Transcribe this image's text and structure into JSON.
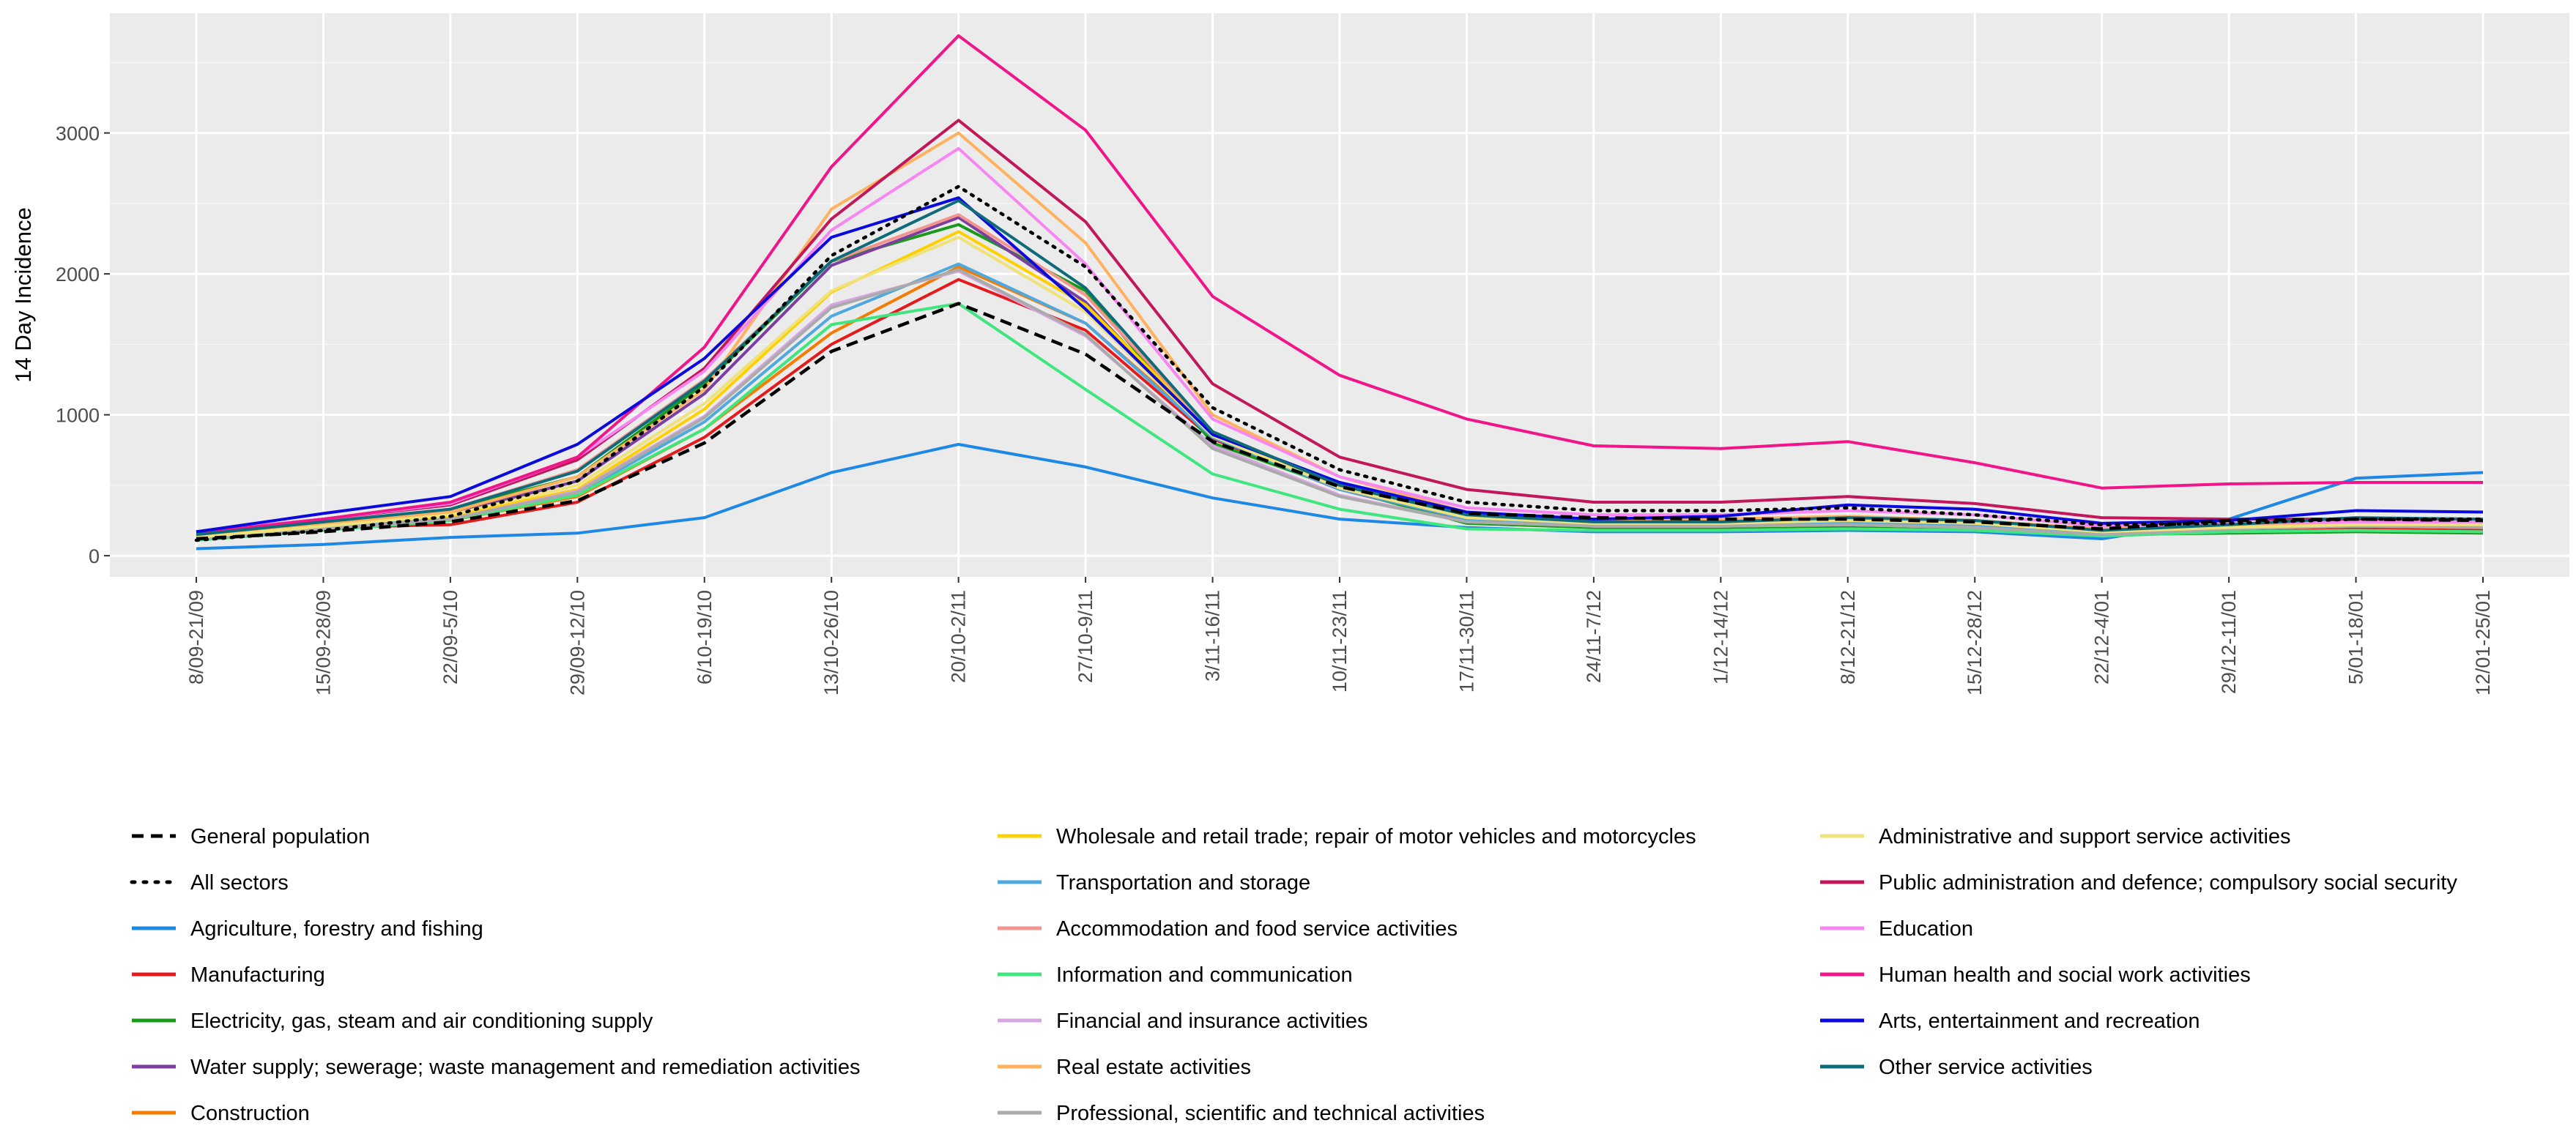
{
  "chart_data": {
    "type": "line",
    "title": "",
    "xlabel": "",
    "ylabel": "14 Day Incidence",
    "ylim": [
      -150,
      3850
    ],
    "yticks": [
      0,
      1000,
      2000,
      3000
    ],
    "ytick_labels": [
      "0",
      "1000",
      "2000",
      "3000"
    ],
    "grid": true,
    "legend_position": "bottom",
    "categories": [
      "8/09-21/09",
      "15/09-28/09",
      "22/09-5/10",
      "29/09-12/10",
      "6/10-19/10",
      "13/10-26/10",
      "20/10-2/11",
      "27/10-9/11",
      "3/11-16/11",
      "10/11-23/11",
      "17/11-30/11",
      "24/11-7/12",
      "1/12-14/12",
      "8/12-21/12",
      "15/12-28/12",
      "22/12-4/01",
      "29/12-11/01",
      "5/01-18/01",
      "12/01-25/01"
    ],
    "series": [
      {
        "name": "General population",
        "color": "#000000",
        "dash": "dashed",
        "values": [
          120,
          170,
          240,
          390,
          800,
          1450,
          1790,
          1430,
          810,
          490,
          300,
          270,
          260,
          260,
          240,
          190,
          250,
          260,
          250
        ]
      },
      {
        "name": "All sectors",
        "color": "#000000",
        "dash": "dotted",
        "values": [
          110,
          180,
          280,
          530,
          1200,
          2130,
          2620,
          2050,
          1050,
          610,
          380,
          320,
          320,
          340,
          290,
          220,
          230,
          260,
          260
        ]
      },
      {
        "name": "Agriculture, forestry and fishing",
        "color": "#1E88E5",
        "dash": "solid",
        "values": [
          50,
          80,
          130,
          160,
          270,
          590,
          790,
          630,
          410,
          260,
          200,
          170,
          170,
          180,
          170,
          120,
          260,
          550,
          590
        ]
      },
      {
        "name": "Manufacturing",
        "color": "#E41A1C",
        "dash": "solid",
        "values": [
          130,
          200,
          220,
          380,
          840,
          1500,
          1960,
          1600,
          830,
          470,
          250,
          200,
          200,
          220,
          200,
          150,
          180,
          190,
          180
        ]
      },
      {
        "name": "Electricity, gas, steam and air conditioning supply",
        "color": "#1A9A1A",
        "dash": "solid",
        "values": [
          140,
          230,
          330,
          560,
          1220,
          2090,
          2350,
          1880,
          800,
          480,
          230,
          200,
          200,
          210,
          190,
          150,
          160,
          170,
          160
        ]
      },
      {
        "name": "Water supply; sewerage; waste management and remediation activities",
        "color": "#7B3FA0",
        "dash": "solid",
        "values": [
          140,
          220,
          300,
          530,
          1150,
          2060,
          2400,
          1800,
          840,
          500,
          270,
          220,
          220,
          240,
          220,
          160,
          200,
          230,
          220
        ]
      },
      {
        "name": "Construction",
        "color": "#F57C00",
        "dash": "solid",
        "values": [
          130,
          200,
          250,
          420,
          900,
          1580,
          2050,
          1650,
          860,
          480,
          260,
          210,
          210,
          220,
          200,
          150,
          190,
          210,
          200
        ]
      },
      {
        "name": "Wholesale and retail trade; repair of motor vehicles and motorcycles",
        "color": "#FFD000",
        "dash": "solid",
        "values": [
          130,
          210,
          280,
          470,
          1040,
          1870,
          2300,
          1780,
          880,
          500,
          280,
          240,
          240,
          260,
          240,
          180,
          210,
          230,
          230
        ]
      },
      {
        "name": "Transportation and storage",
        "color": "#4FA8E0",
        "dash": "solid",
        "values": [
          120,
          200,
          260,
          440,
          950,
          1700,
          2070,
          1650,
          840,
          470,
          260,
          220,
          220,
          230,
          210,
          160,
          200,
          220,
          210
        ]
      },
      {
        "name": "Accommodation and food service activities",
        "color": "#F4948E",
        "dash": "solid",
        "values": [
          150,
          240,
          330,
          610,
          1250,
          2090,
          2420,
          1850,
          880,
          500,
          280,
          240,
          240,
          260,
          240,
          180,
          210,
          230,
          230
        ]
      },
      {
        "name": "Information and communication",
        "color": "#3FE67F",
        "dash": "solid",
        "values": [
          110,
          180,
          250,
          430,
          900,
          1640,
          1790,
          1180,
          580,
          330,
          190,
          180,
          180,
          190,
          180,
          140,
          170,
          180,
          170
        ]
      },
      {
        "name": "Financial and insurance activities",
        "color": "#D7A6E2",
        "dash": "solid",
        "values": [
          120,
          190,
          260,
          460,
          990,
          1780,
          2020,
          1560,
          780,
          430,
          240,
          210,
          210,
          220,
          200,
          150,
          190,
          210,
          200
        ]
      },
      {
        "name": "Real estate activities",
        "color": "#FFB15E",
        "dash": "solid",
        "values": [
          140,
          220,
          310,
          560,
          1180,
          2460,
          3000,
          2220,
          1000,
          560,
          310,
          260,
          260,
          280,
          250,
          190,
          220,
          240,
          240
        ]
      },
      {
        "name": "Professional, scientific and technical activities",
        "color": "#AAAAAA",
        "dash": "solid",
        "values": [
          120,
          190,
          260,
          450,
          980,
          1760,
          2030,
          1570,
          760,
          420,
          240,
          210,
          210,
          220,
          200,
          150,
          190,
          210,
          200
        ]
      },
      {
        "name": "Administrative and support service activities",
        "color": "#F0E27A",
        "dash": "solid",
        "values": [
          130,
          210,
          290,
          500,
          1080,
          1880,
          2260,
          1730,
          850,
          480,
          270,
          230,
          230,
          250,
          230,
          170,
          200,
          220,
          220
        ]
      },
      {
        "name": "Public administration and defence; compulsory social security",
        "color": "#C2185B",
        "dash": "solid",
        "values": [
          170,
          260,
          360,
          680,
          1330,
          2390,
          3090,
          2370,
          1220,
          700,
          470,
          380,
          380,
          420,
          370,
          270,
          260,
          260,
          260
        ]
      },
      {
        "name": "Education",
        "color": "#F786F2",
        "dash": "solid",
        "values": [
          170,
          260,
          370,
          700,
          1310,
          2310,
          2890,
          2070,
          970,
          560,
          340,
          290,
          290,
          320,
          290,
          210,
          230,
          240,
          240
        ]
      },
      {
        "name": "Human health and social work activities",
        "color": "#F0168A",
        "dash": "solid",
        "values": [
          160,
          260,
          380,
          700,
          1480,
          2760,
          3690,
          3020,
          1840,
          1280,
          970,
          780,
          760,
          810,
          660,
          480,
          510,
          520,
          520
        ]
      },
      {
        "name": "Arts, entertainment and recreation",
        "color": "#0A0ADC",
        "dash": "solid",
        "values": [
          170,
          300,
          420,
          790,
          1400,
          2260,
          2540,
          1750,
          860,
          520,
          310,
          260,
          280,
          360,
          330,
          230,
          250,
          320,
          310
        ]
      },
      {
        "name": "Other service activities",
        "color": "#0E6B7A",
        "dash": "solid",
        "values": [
          150,
          240,
          330,
          600,
          1240,
          2090,
          2520,
          1900,
          880,
          500,
          290,
          240,
          240,
          270,
          250,
          180,
          220,
          270,
          260
        ]
      }
    ]
  }
}
